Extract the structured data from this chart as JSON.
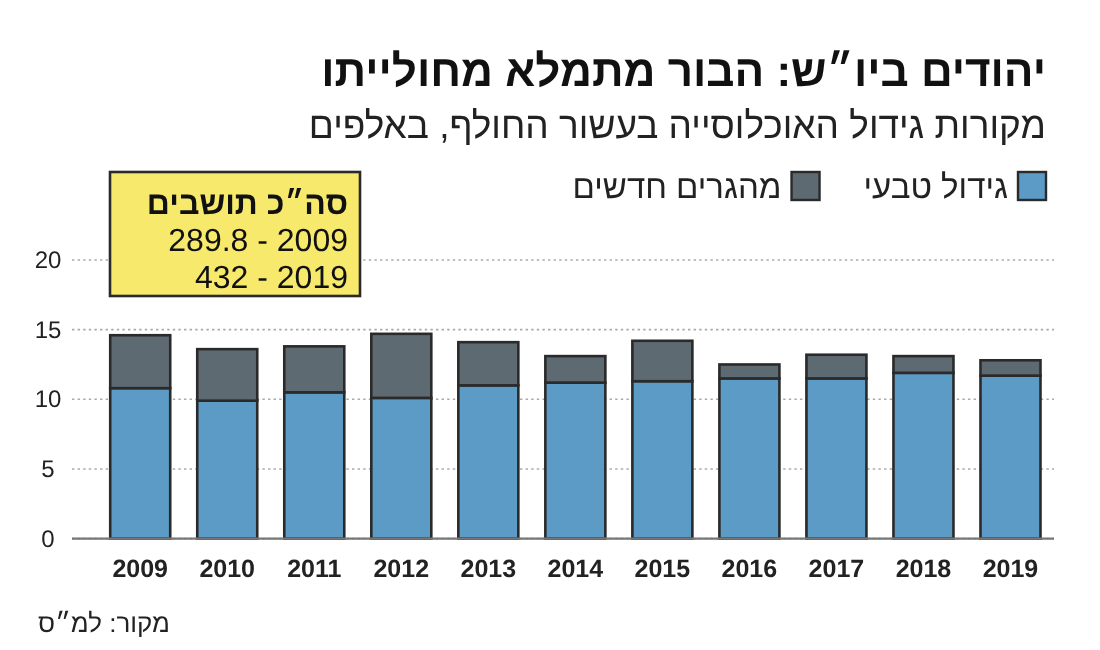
{
  "chart_data": {
    "type": "bar",
    "title": "יהודים ביו״ש: הבור מתמלא מחולייתו",
    "subtitle": "מקורות גידול האוכלוסייה בעשור החולף, באלפים",
    "categories": [
      "2009",
      "2010",
      "2011",
      "2012",
      "2013",
      "2014",
      "2015",
      "2016",
      "2017",
      "2018",
      "2019"
    ],
    "series": [
      {
        "name": "גידול טבעי",
        "color": "#5b9bc5",
        "values": [
          10.8,
          9.9,
          10.5,
          10.1,
          11.0,
          11.2,
          11.3,
          11.5,
          11.5,
          11.9,
          11.7
        ]
      },
      {
        "name": "מהגרים חדשים",
        "color": "#5e6a72",
        "values": [
          3.8,
          3.7,
          3.3,
          4.6,
          3.1,
          1.9,
          2.9,
          1.0,
          1.7,
          1.2,
          1.1
        ]
      }
    ],
    "stacked": true,
    "ylim": [
      0,
      20
    ],
    "yticks": [
      0,
      5,
      10,
      15,
      20
    ],
    "grid": "y",
    "legend": "top right",
    "annotations": [
      "סה״כ תושבים",
      "289.8 - 2009",
      "432 - 2019",
      "מקור: למ״ס"
    ]
  }
}
